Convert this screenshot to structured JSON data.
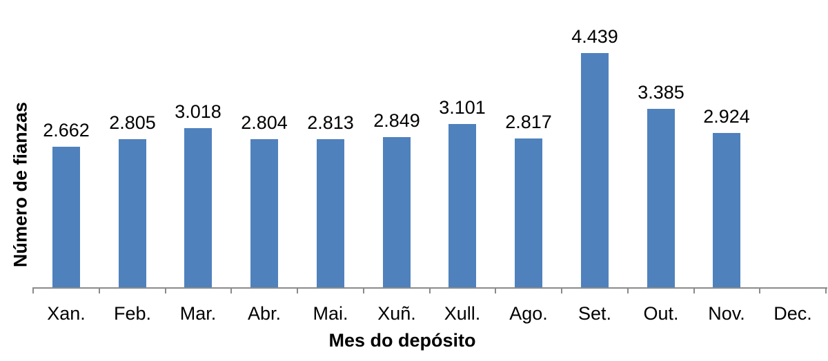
{
  "chart_data": {
    "type": "bar",
    "title": "",
    "xlabel": "Mes do depósito",
    "ylabel": "Número de fianzas",
    "categories": [
      "Xan.",
      "Feb.",
      "Mar.",
      "Abr.",
      "Mai.",
      "Xuñ.",
      "Xull.",
      "Ago.",
      "Set.",
      "Out.",
      "Nov.",
      "Dec."
    ],
    "values": [
      2662,
      2805,
      3018,
      2804,
      2813,
      2849,
      3101,
      2817,
      4439,
      3385,
      2924,
      null
    ],
    "value_labels": [
      "2.662",
      "2.805",
      "3.018",
      "2.804",
      "2.813",
      "2.849",
      "3.101",
      "2.817",
      "4.439",
      "3.385",
      "2.924",
      ""
    ],
    "ylim": [
      0,
      5000
    ],
    "grid": false,
    "legend": "none",
    "colors": {
      "bar": "#4F81BD",
      "axis": "#8A8A8A",
      "text": "#000000",
      "background": "#FFFFFF"
    }
  }
}
